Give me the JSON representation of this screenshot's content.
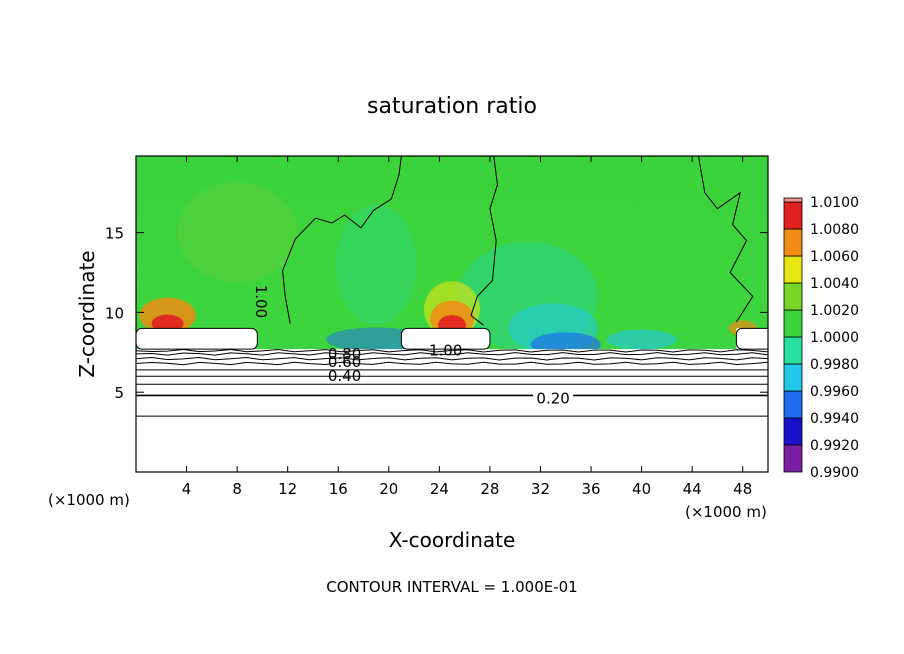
{
  "chart_data": {
    "type": "heatmap",
    "title": "saturation ratio",
    "xlabel": "X-coordinate",
    "ylabel": "Z-coordinate",
    "xunit_left": "(×1000 m)",
    "xunit_right": "(×1000 m)",
    "xlim": [
      0,
      50
    ],
    "ylim": [
      0,
      19.8
    ],
    "xticks": [
      4,
      8,
      12,
      16,
      20,
      24,
      28,
      32,
      36,
      40,
      44,
      48
    ],
    "yticks": [
      5,
      10,
      15
    ],
    "colorbar": {
      "levels": [
        "0.9900",
        "0.9920",
        "0.9940",
        "0.9960",
        "0.9980",
        "1.0000",
        "1.0020",
        "1.0040",
        "1.0060",
        "1.0080",
        "1.0100"
      ],
      "colors": [
        "#7a1fa2",
        "#1a12c8",
        "#1f6cf0",
        "#22c8e8",
        "#28e0a0",
        "#3cd23c",
        "#78d628",
        "#e6e614",
        "#f08c14",
        "#e02020",
        "#f09090"
      ]
    },
    "contour_labels": [
      {
        "text": "1.00",
        "x": 9.5,
        "y": 11.0
      },
      {
        "text": "1.00",
        "x": 24.5,
        "y": 7.6
      },
      {
        "text": "0.80",
        "x": 16.5,
        "y": 7.4
      },
      {
        "text": "0.60",
        "x": 16.5,
        "y": 6.9
      },
      {
        "text": "0.40",
        "x": 16.5,
        "y": 6.0
      },
      {
        "text": "0.20",
        "x": 33.0,
        "y": 4.6
      }
    ],
    "annotation": "CONTOUR INTERVAL =  1.000E-01"
  }
}
